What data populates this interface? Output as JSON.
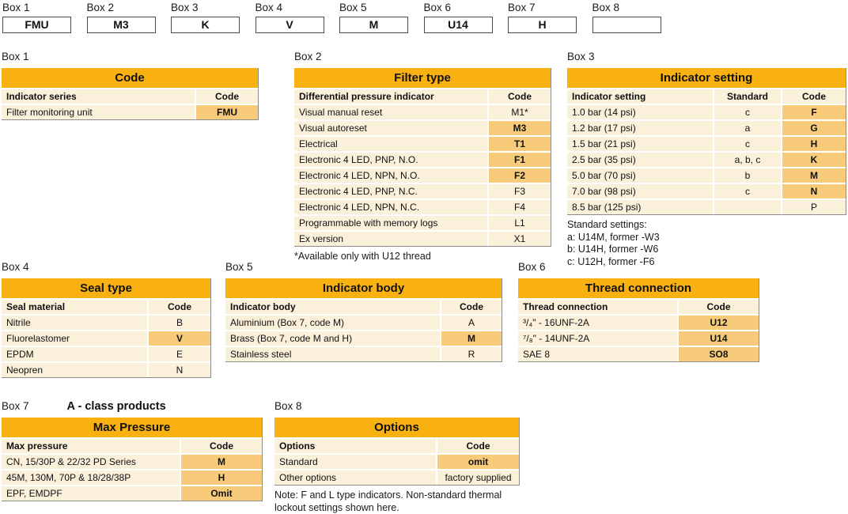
{
  "colors": {
    "header_bg": "#F9B011",
    "row_bg": "#FBF0DA",
    "highlight_bg": "#F7CB79",
    "table_border": "#8C8C8C"
  },
  "top_boxes": [
    {
      "label": "Box 1",
      "value": "FMU"
    },
    {
      "label": "Box 2",
      "value": "M3"
    },
    {
      "label": "Box 3",
      "value": "K"
    },
    {
      "label": "Box 4",
      "value": "V"
    },
    {
      "label": "Box 5",
      "value": "M"
    },
    {
      "label": "Box 6",
      "value": "U14"
    },
    {
      "label": "Box 7",
      "value": "H"
    },
    {
      "label": "Box 8",
      "value": ""
    }
  ],
  "tables": {
    "box1": {
      "box_label": "Box 1",
      "title": "Code",
      "columns": [
        "Indicator series",
        "Code"
      ],
      "rows": [
        {
          "cells": [
            "Filter monitoring unit",
            "FMU"
          ],
          "hl": [
            1
          ]
        }
      ],
      "notes": []
    },
    "box2": {
      "box_label": "Box 2",
      "title": "Filter type",
      "columns": [
        "Differential pressure indicator",
        "Code"
      ],
      "rows": [
        {
          "cells": [
            "Visual manual reset",
            "M1*"
          ],
          "hl": []
        },
        {
          "cells": [
            "Visual autoreset",
            "M3"
          ],
          "hl": [
            1
          ]
        },
        {
          "cells": [
            "Electrical",
            "T1"
          ],
          "hl": [
            1
          ]
        },
        {
          "cells": [
            "Electronic 4 LED, PNP, N.O.",
            "F1"
          ],
          "hl": [
            1
          ]
        },
        {
          "cells": [
            "Electronic 4 LED, NPN, N.O.",
            "F2"
          ],
          "hl": [
            1
          ]
        },
        {
          "cells": [
            "Electronic 4 LED, PNP, N.C.",
            "F3"
          ],
          "hl": []
        },
        {
          "cells": [
            "Electronic 4 LED, NPN, N.C.",
            "F4"
          ],
          "hl": []
        },
        {
          "cells": [
            "Programmable with memory logs",
            "L1"
          ],
          "hl": []
        },
        {
          "cells": [
            "Ex version",
            "X1"
          ],
          "hl": []
        }
      ],
      "notes": [
        "*Available only with U12 thread"
      ]
    },
    "box3": {
      "box_label": "Box 3",
      "title": "Indicator setting",
      "columns": [
        "Indicator setting",
        "Standard",
        "Code"
      ],
      "rows": [
        {
          "cells": [
            "1.0 bar (14 psi)",
            "c",
            "F"
          ],
          "hl": [
            2
          ]
        },
        {
          "cells": [
            "1.2 bar (17 psi)",
            "a",
            "G"
          ],
          "hl": [
            2
          ]
        },
        {
          "cells": [
            "1.5 bar (21 psi)",
            "c",
            "H"
          ],
          "hl": [
            2
          ]
        },
        {
          "cells": [
            "2.5 bar (35 psi)",
            "a, b, c",
            "K"
          ],
          "hl": [
            2
          ]
        },
        {
          "cells": [
            "5.0 bar (70 psi)",
            "b",
            "M"
          ],
          "hl": [
            2
          ]
        },
        {
          "cells": [
            "7.0 bar (98 psi)",
            "c",
            "N"
          ],
          "hl": [
            2
          ]
        },
        {
          "cells": [
            "8.5 bar (125 psi)",
            "",
            "P"
          ],
          "hl": []
        }
      ],
      "notes": [
        "Standard settings:",
        "a: U14M, former -W3",
        "b: U14H, former -W6",
        "c: U12H, former -F6"
      ]
    },
    "box4": {
      "box_label": "Box 4",
      "title": "Seal type",
      "columns": [
        "Seal material",
        "Code"
      ],
      "rows": [
        {
          "cells": [
            "Nitrile",
            "B"
          ],
          "hl": []
        },
        {
          "cells": [
            "Fluorelastomer",
            "V"
          ],
          "hl": [
            1
          ]
        },
        {
          "cells": [
            "EPDM",
            "E"
          ],
          "hl": []
        },
        {
          "cells": [
            "Neopren",
            "N"
          ],
          "hl": []
        }
      ],
      "notes": []
    },
    "box5": {
      "box_label": "Box 5",
      "title": "Indicator body",
      "columns": [
        "Indicator body",
        "Code"
      ],
      "rows": [
        {
          "cells": [
            "Aluminium (Box 7, code M)",
            "A"
          ],
          "hl": []
        },
        {
          "cells": [
            "Brass (Box 7, code M and H)",
            "M"
          ],
          "hl": [
            1
          ]
        },
        {
          "cells": [
            "Stainless steel",
            "R"
          ],
          "hl": []
        }
      ],
      "notes": []
    },
    "box6": {
      "box_label": "Box 6",
      "title": "Thread connection",
      "columns": [
        "Thread connection",
        "Code"
      ],
      "rows": [
        {
          "cells": [
            "³/₄\" - 16UNF-2A",
            "U12"
          ],
          "hl": [
            1
          ]
        },
        {
          "cells": [
            "⁷/₈\" - 14UNF-2A",
            "U14"
          ],
          "hl": [
            1
          ]
        },
        {
          "cells": [
            "SAE 8",
            "SO8"
          ],
          "hl": [
            1
          ]
        }
      ],
      "notes": []
    },
    "box7": {
      "box_label": "Box 7",
      "title_above": "A - class products",
      "title": "Max Pressure",
      "columns": [
        "Max pressure",
        "Code"
      ],
      "rows": [
        {
          "cells": [
            "CN, 15/30P & 22/32 PD Series",
            "M"
          ],
          "hl": [
            1
          ]
        },
        {
          "cells": [
            "45M, 130M, 70P & 18/28/38P",
            "H"
          ],
          "hl": [
            1
          ]
        },
        {
          "cells": [
            "EPF, EMDPF",
            "Omit"
          ],
          "hl": [
            1
          ]
        }
      ],
      "notes": []
    },
    "box8": {
      "box_label": "Box 8",
      "title": "Options",
      "columns": [
        "Options",
        "Code"
      ],
      "rows": [
        {
          "cells": [
            "Standard",
            "omit"
          ],
          "hl": [
            1
          ]
        },
        {
          "cells": [
            "Other options",
            "factory supplied"
          ],
          "hl": []
        }
      ],
      "notes": [
        "Note: F and L type indicators. Non-standard thermal lockout settings shown here."
      ]
    }
  }
}
